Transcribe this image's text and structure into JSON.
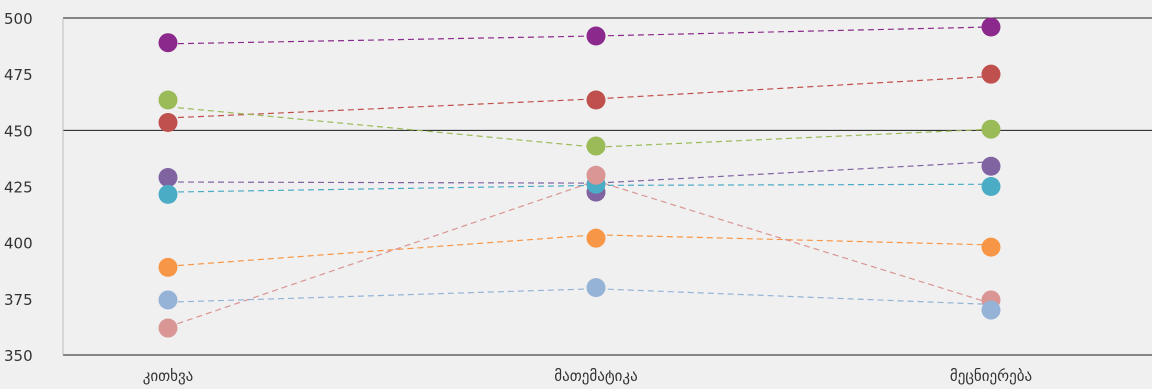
{
  "chart_data": {
    "type": "line",
    "categories": [
      "კითხვა",
      "მათემატიკა",
      "მეცნიერება"
    ],
    "y_ticks": [
      "350",
      "375",
      "400",
      "425",
      "450",
      "475",
      "500"
    ],
    "ylim": [
      350,
      500
    ],
    "grid": "horizontal lines at 350, 450, 500",
    "series": [
      {
        "color": "#8B2A8C",
        "values": [
          489,
          492,
          496
        ],
        "trend": [
          488.5,
          492,
          496
        ]
      },
      {
        "color": "#C0504D",
        "values": [
          453.5,
          463.5,
          475
        ],
        "trend": [
          455.5,
          464,
          474
        ]
      },
      {
        "color": "#9BBB59",
        "values": [
          463.5,
          443,
          450.5
        ],
        "trend": [
          460.5,
          442.5,
          450.5
        ]
      },
      {
        "color": "#8064A2",
        "values": [
          429,
          422.5,
          434
        ],
        "trend": [
          427,
          426.5,
          436
        ]
      },
      {
        "color": "#4BACC6",
        "values": [
          421.5,
          426,
          425
        ],
        "trend": [
          422.5,
          425.5,
          426
        ]
      },
      {
        "color": "#F79646",
        "values": [
          389,
          402,
          398
        ],
        "trend": [
          389.5,
          403.5,
          399
        ]
      },
      {
        "color": "#D99694",
        "values": [
          362,
          430,
          374.5
        ],
        "trend": [
          362.5,
          427.5,
          373
        ]
      },
      {
        "color": "#95B3D7",
        "values": [
          374.5,
          380,
          370
        ],
        "trend": [
          373.5,
          379.5,
          372.5
        ]
      }
    ]
  }
}
